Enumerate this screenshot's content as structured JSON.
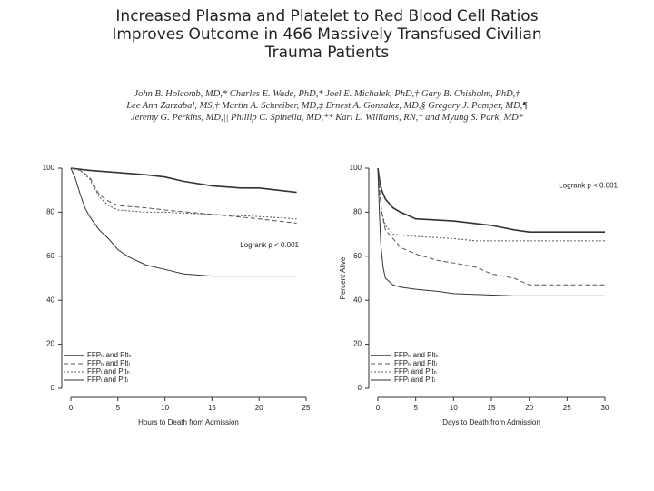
{
  "header": {
    "title": [
      "Increased Plasma and Platelet to Red Blood Cell Ratios",
      "Improves Outcome in 466 Massively Transfused Civilian",
      "Trauma Patients"
    ],
    "authors": [
      "John B. Holcomb, MD,* Charles E. Wade, PhD,* Joel E. Michalek, PhD,† Gary B. Chisholm, PhD,†",
      "Lee Ann Zarzabal, MS,† Martin A. Schreiber, MD,‡ Ernest A. Gonzalez, MD,§ Gregory J. Pomper, MD,¶",
      "Jeremy G. Perkins, MD,|| Phillip C. Spinella, MD,** Kari L. Williams, RN,* and Myung S. Park, MD*"
    ]
  },
  "chart_data": [
    {
      "type": "line",
      "xlabel": "Hours to Death from Admission",
      "annotation": "Logrank p < 0.001",
      "xlim": [
        0,
        25
      ],
      "xticks": [
        0,
        5,
        10,
        15,
        20,
        25
      ],
      "ylim": [
        0,
        100
      ],
      "yticks": [
        0,
        20,
        40,
        60,
        80,
        100
      ],
      "series": [
        {
          "name": "FFPₕ and Pltₕ",
          "color": "#333333",
          "style": "solid",
          "x": [
            0,
            2,
            5,
            8,
            10,
            12,
            15,
            18,
            20,
            22,
            24
          ],
          "values": [
            100,
            99,
            98,
            97,
            96,
            94,
            92,
            91,
            91,
            90,
            89
          ]
        },
        {
          "name": "FFPₕ and Pltₗ",
          "color": "#555555",
          "style": "dashed",
          "x": [
            0,
            1,
            2,
            3,
            4,
            5,
            8,
            10,
            15,
            20,
            24
          ],
          "values": [
            100,
            99,
            96,
            88,
            85,
            83,
            82,
            81,
            79,
            77,
            75
          ]
        },
        {
          "name": "FFPₗ and Pltₕ",
          "color": "#555555",
          "style": "dotted",
          "x": [
            0,
            1,
            2,
            3,
            4,
            5,
            8,
            10,
            15,
            20,
            24
          ],
          "values": [
            100,
            99,
            95,
            87,
            83,
            81,
            80,
            80,
            79,
            78,
            77
          ]
        },
        {
          "name": "FFPₗ and Pltₗ",
          "color": "#333333",
          "style": "thin",
          "x": [
            0,
            0.5,
            1,
            1.5,
            2,
            3,
            4,
            5,
            6,
            8,
            10,
            12,
            15,
            20,
            24
          ],
          "values": [
            100,
            95,
            88,
            82,
            78,
            72,
            68,
            63,
            60,
            56,
            54,
            52,
            51,
            51,
            51
          ]
        }
      ]
    },
    {
      "type": "line",
      "xlabel": "Days to Death from Admission",
      "ylabel": "Percent Alive",
      "annotation": "Logrank p < 0.001",
      "xlim": [
        0,
        30
      ],
      "xticks": [
        0,
        5,
        10,
        15,
        20,
        25,
        30
      ],
      "ylim": [
        0,
        100
      ],
      "yticks": [
        0,
        20,
        40,
        60,
        80,
        100
      ],
      "series": [
        {
          "name": "FFPₕ and Pltₕ",
          "color": "#333333",
          "style": "solid",
          "x": [
            0,
            0.2,
            0.5,
            1,
            2,
            3,
            5,
            10,
            15,
            18,
            20,
            30
          ],
          "values": [
            100,
            95,
            90,
            86,
            82,
            80,
            77,
            76,
            74,
            72,
            71,
            71
          ]
        },
        {
          "name": "FFPₕ and Pltₗ",
          "color": "#555555",
          "style": "dashed",
          "x": [
            0,
            0.2,
            0.5,
            1,
            2,
            3,
            5,
            8,
            10,
            13,
            15,
            18,
            20,
            30
          ],
          "values": [
            100,
            90,
            80,
            72,
            68,
            64,
            61,
            58,
            57,
            55,
            52,
            50,
            47,
            47
          ]
        },
        {
          "name": "FFPₗ and Pltₕ",
          "color": "#555555",
          "style": "dotted",
          "x": [
            0,
            0.3,
            0.5,
            1,
            2,
            5,
            10,
            13,
            20,
            30
          ],
          "values": [
            100,
            88,
            80,
            74,
            70,
            69,
            68,
            67,
            67,
            67
          ]
        },
        {
          "name": "FFPₗ and Pltₗ",
          "color": "#333333",
          "style": "thin",
          "x": [
            0,
            0.2,
            0.4,
            0.7,
            1,
            2,
            3,
            5,
            8,
            10,
            18,
            30
          ],
          "values": [
            100,
            80,
            65,
            55,
            50,
            47,
            46,
            45,
            44,
            43,
            42,
            42
          ]
        }
      ]
    }
  ]
}
